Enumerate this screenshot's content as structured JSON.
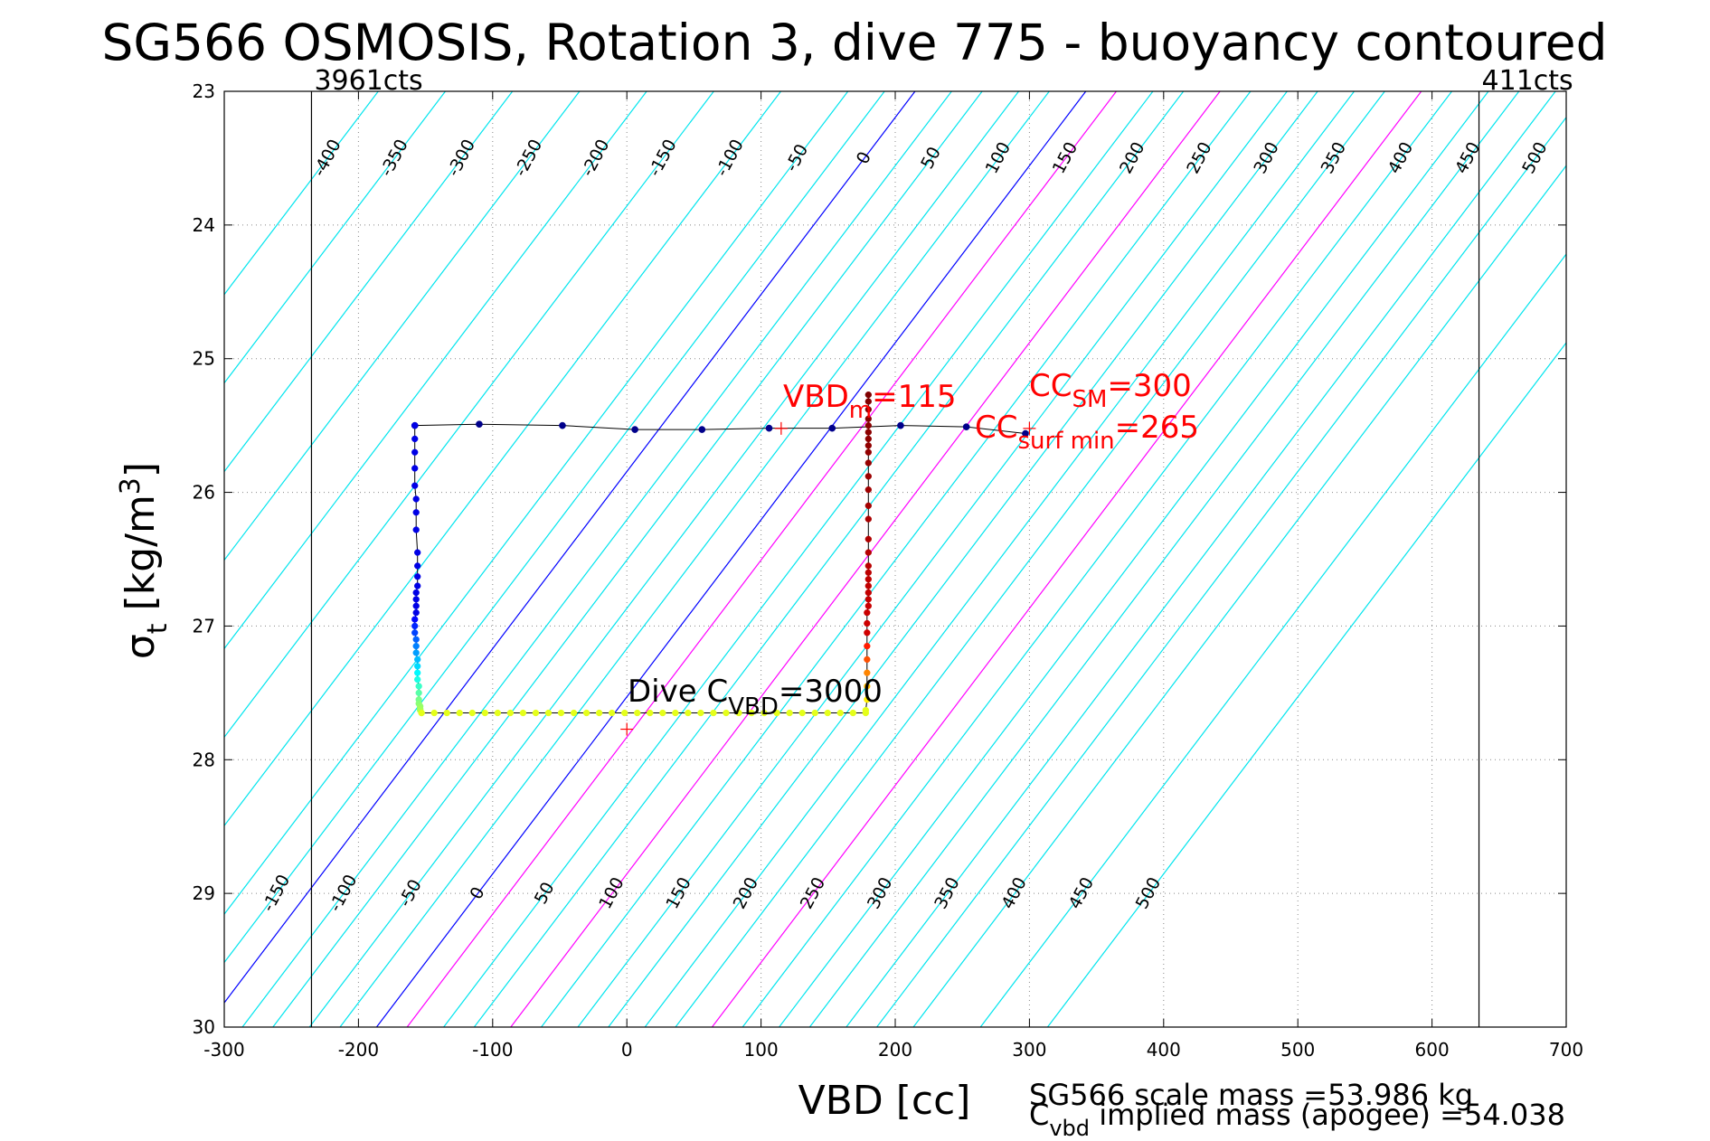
{
  "chart_data": {
    "type": "scatter",
    "title": "SG566 OSMOSIS, Rotation 3, dive 775 - buoyancy contoured",
    "xlabel": "VBD [cc]",
    "ylabel_main": "σ",
    "ylabel_sub": "t",
    "ylabel_units": " [kg/m",
    "ylabel_sup": "3",
    "ylabel_close": "]",
    "xlim": [
      -300,
      700
    ],
    "ylim": [
      23,
      30
    ],
    "y_reversed": true,
    "grid": "dotted",
    "x_ticks": [
      -300,
      -200,
      -100,
      0,
      100,
      200,
      300,
      400,
      500,
      600,
      700
    ],
    "x_tick_labels": [
      "-300",
      "-200",
      "-100",
      "0",
      "100",
      "200",
      "300",
      "400",
      "500",
      "600",
      "700"
    ],
    "y_ticks": [
      23,
      24,
      25,
      26,
      27,
      28,
      29,
      30
    ],
    "y_tick_labels": [
      "23",
      "24",
      "25",
      "26",
      "27",
      "28",
      "29",
      "30"
    ],
    "contours": {
      "slope_cc_per_sigma": 75.5,
      "top_set": {
        "anchor_sigma": 23.5,
        "zero_vbd": 177,
        "values": [
          -400,
          -350,
          -300,
          -250,
          -200,
          -150,
          -100,
          -50,
          0,
          50,
          100,
          150,
          200,
          250,
          300,
          350,
          400,
          450,
          500
        ]
      },
      "bottom_set": {
        "anchor_sigma": 29.0,
        "zero_vbd": -111,
        "values": [
          -150,
          -100,
          -50,
          0,
          50,
          100,
          150,
          200,
          250,
          300,
          350,
          400,
          450,
          500
        ]
      },
      "colors": {
        "default": "#00e5ee",
        "zero": "#0000ff",
        "highlight": "#ff00ff"
      },
      "highlight_top": [
        150
      ],
      "highlight_bottom": [
        100,
        250
      ]
    },
    "limits": [
      {
        "vbd": -235,
        "label": "3961cts"
      },
      {
        "vbd": 635,
        "label": "411cts"
      }
    ],
    "trajectory": {
      "surface_dive_top": [
        [
          -158,
          25.5
        ],
        [
          -110,
          25.49
        ],
        [
          -48,
          25.5
        ],
        [
          6,
          25.53
        ],
        [
          56,
          25.53
        ],
        [
          106,
          25.52
        ],
        [
          153,
          25.52
        ],
        [
          204,
          25.5
        ],
        [
          253,
          25.51
        ],
        [
          297,
          25.56
        ]
      ],
      "descent": {
        "vbd": [
          -158,
          -158,
          -158,
          -158,
          -158,
          -157,
          -157,
          -157,
          -156,
          -156,
          -156,
          -156,
          -157,
          -157,
          -157,
          -157,
          -158,
          -158,
          -158,
          -157,
          -157,
          -157,
          -156,
          -156,
          -156,
          -156,
          -155,
          -155,
          -155,
          -155,
          -154,
          -154,
          -154,
          -153
        ],
        "sigma": [
          25.5,
          25.6,
          25.7,
          25.82,
          25.95,
          26.05,
          26.15,
          26.28,
          26.45,
          26.55,
          26.63,
          26.7,
          26.75,
          26.8,
          26.85,
          26.9,
          26.95,
          27.0,
          27.05,
          27.1,
          27.15,
          27.2,
          27.25,
          27.3,
          27.35,
          27.4,
          27.45,
          27.5,
          27.55,
          27.58,
          27.6,
          27.62,
          27.63,
          27.65
        ]
      },
      "bottom": {
        "vbd_start": -153,
        "vbd_end": 178,
        "sigma": 27.65,
        "n_points": 36
      },
      "ascent": {
        "vbd": [
          178,
          179,
          179,
          179,
          179,
          179,
          179,
          179,
          179,
          180,
          180,
          180,
          180,
          180,
          180,
          180,
          180,
          180,
          180,
          180,
          180,
          180,
          180,
          180,
          180,
          180,
          180,
          180,
          180,
          180,
          180,
          180
        ],
        "sigma": [
          27.63,
          27.55,
          27.45,
          27.35,
          27.25,
          27.15,
          27.05,
          26.98,
          26.9,
          26.85,
          26.8,
          26.75,
          26.7,
          26.65,
          26.6,
          26.55,
          26.45,
          26.35,
          26.2,
          26.1,
          25.98,
          25.88,
          25.78,
          25.7,
          25.65,
          25.6,
          25.55,
          25.5,
          25.45,
          25.38,
          25.32,
          25.27
        ]
      },
      "colormap": "jet"
    },
    "markers": [
      {
        "vbd": 115,
        "sigma": 25.4,
        "color": "#ff0000"
      },
      {
        "vbd": 300,
        "sigma": 25.4,
        "color": "#ff0000"
      },
      {
        "vbd": 0,
        "sigma": 27.65,
        "color": "#ff0000"
      }
    ],
    "annotations": {
      "vbd_m": {
        "main": "VBD",
        "sub": "m",
        "rest": "=115",
        "color": "#ff0000"
      },
      "cc_sm": {
        "main": "CC",
        "sub": "SM",
        "rest": "=300",
        "color": "#ff0000"
      },
      "cc_surf": {
        "main": "CC",
        "sub": "surf min",
        "rest": "=265",
        "color": "#ff0000"
      },
      "dive_cvbd": {
        "main": "Dive C",
        "sub": "VBD",
        "rest": "=3000",
        "color": "#000000"
      }
    },
    "footer": {
      "scale_mass": "SG566 scale mass =53.986 kg",
      "implied_main": "C",
      "implied_sub": "vbd",
      "implied_rest": " implied mass (apogee) =54.038"
    }
  }
}
